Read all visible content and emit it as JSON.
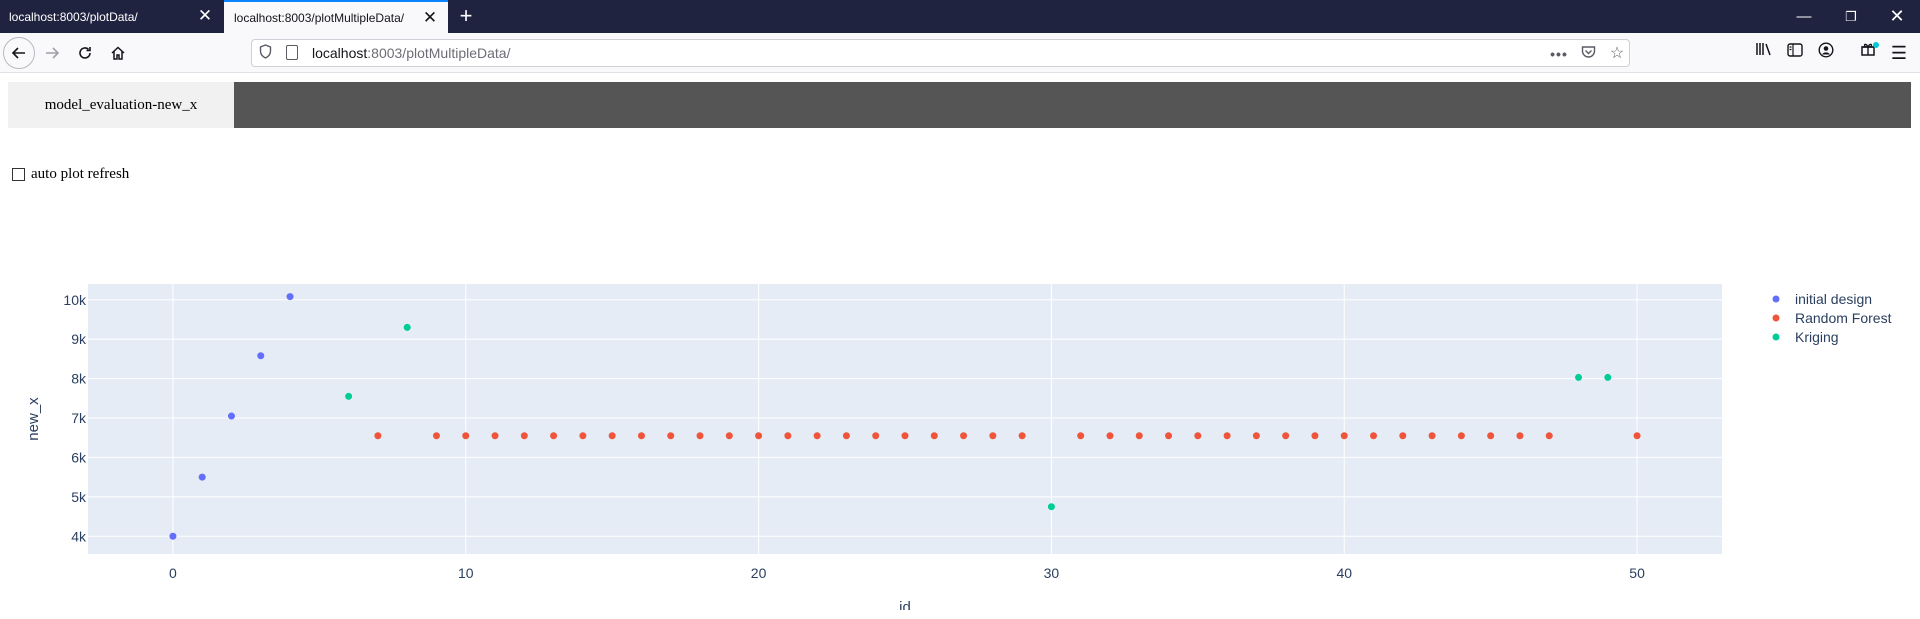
{
  "browser": {
    "tabs": [
      {
        "title": "localhost:8003/plotData/"
      },
      {
        "title": "localhost:8003/plotMultipleData/"
      }
    ],
    "url_host": "localhost",
    "url_rest": ":8003/plotMultipleData/",
    "icons": {
      "back": "arrow-left-icon",
      "forward": "arrow-right-icon",
      "reload": "reload-icon",
      "home": "home-icon",
      "shield": "shield-icon",
      "page": "page-icon",
      "more": "more-icon",
      "pocket": "pocket-icon",
      "star": "star-icon",
      "library": "library-icon",
      "sidebar": "sidebar-icon",
      "account": "account-icon",
      "extensions": "extensions-icon",
      "menu": "hamburger-menu-icon"
    }
  },
  "page": {
    "tab_label": "model_evaluation-new_x",
    "refresh_label": "auto plot refresh",
    "refresh_checked": false
  },
  "chart_data": {
    "type": "scatter",
    "xlabel": "id",
    "ylabel": "new_x",
    "xlim": [
      -2.9,
      52.9
    ],
    "ylim": [
      3550,
      10400
    ],
    "x_ticks": [
      0,
      10,
      20,
      30,
      40,
      50
    ],
    "x_tick_labels": [
      "0",
      "10",
      "20",
      "30",
      "40",
      "50"
    ],
    "y_ticks": [
      4000,
      5000,
      6000,
      7000,
      8000,
      9000,
      10000
    ],
    "y_tick_labels": [
      "4k",
      "5k",
      "6k",
      "7k",
      "8k",
      "9k",
      "10k"
    ],
    "grid": true,
    "legend_position": "top-right",
    "series": [
      {
        "name": "initial design",
        "color": "#636efa",
        "x": [
          0,
          1,
          2,
          3,
          4
        ],
        "y": [
          4000,
          5500,
          7050,
          8580,
          10080
        ]
      },
      {
        "name": "Random Forest",
        "color": "#ef553b",
        "x": [
          7,
          9,
          10,
          11,
          12,
          13,
          14,
          15,
          16,
          17,
          18,
          19,
          20,
          21,
          22,
          23,
          24,
          25,
          26,
          27,
          28,
          29,
          31,
          32,
          33,
          34,
          35,
          36,
          37,
          38,
          39,
          40,
          41,
          42,
          43,
          44,
          45,
          46,
          47,
          50
        ],
        "y": [
          6550,
          6550,
          6550,
          6550,
          6550,
          6550,
          6550,
          6550,
          6550,
          6550,
          6550,
          6550,
          6550,
          6550,
          6550,
          6550,
          6550,
          6550,
          6550,
          6550,
          6550,
          6550,
          6550,
          6550,
          6550,
          6550,
          6550,
          6550,
          6550,
          6550,
          6550,
          6550,
          6550,
          6550,
          6550,
          6550,
          6550,
          6550,
          6550,
          6550
        ]
      },
      {
        "name": "Kriging",
        "color": "#00cc96",
        "x": [
          6,
          8,
          30,
          48,
          49
        ],
        "y": [
          7550,
          9300,
          4750,
          8030,
          8030
        ]
      }
    ]
  }
}
